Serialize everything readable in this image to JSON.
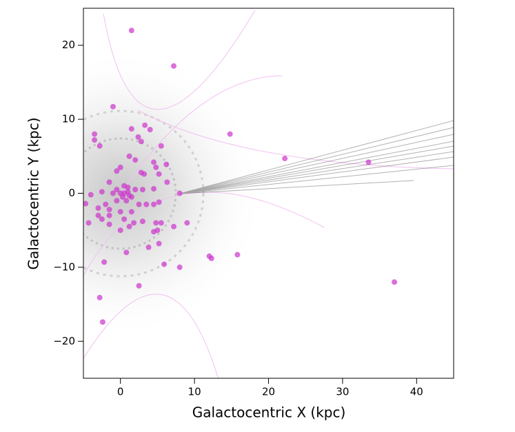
{
  "chart_data": {
    "type": "scatter",
    "x_label": "Galactocentric X (kpc)",
    "y_label": "Galactocentric Y (kpc)",
    "xlim": [
      -5,
      45
    ],
    "ylim": [
      -25,
      25
    ],
    "xticks": [
      0,
      10,
      20,
      30,
      40
    ],
    "yticks": [
      {
        "value": -20,
        "label": "−20"
      },
      {
        "value": -10,
        "label": "−10"
      },
      0,
      10,
      20
    ],
    "color": "#cc33cc",
    "x": [
      1.5,
      7.2,
      -1,
      -3.5,
      -3.5,
      3.3,
      4,
      1.5,
      2.4,
      2.8,
      -2.8,
      5.5,
      14.8,
      22.2,
      33.5,
      37,
      8,
      1.2,
      2,
      4.5,
      4.8,
      6.2,
      0,
      -0.5,
      2.8,
      3.2,
      5.2,
      6.3,
      -1.5,
      0.5,
      1,
      2,
      3,
      4.5,
      -2.5,
      -4,
      -4.7,
      -1,
      0.3,
      1.5,
      -0.5,
      2.5,
      3.5,
      4.5,
      5.2,
      -2,
      -3,
      -1.5,
      0,
      1.5,
      -3,
      -2.5,
      -1.5,
      0.5,
      1.8,
      3,
      4.8,
      5.5,
      7.2,
      9,
      -4.3,
      -1.5,
      1.2,
      0,
      4.5,
      5,
      5.2,
      3.8,
      0.8,
      -2.2,
      5.9,
      8,
      12,
      12.3,
      15.8,
      2.5,
      -2.8,
      -2.4,
      0,
      0.5,
      1,
      -0.5,
      0.8,
      1.2
    ],
    "y": [
      22,
      17.2,
      11.7,
      8,
      7.2,
      9.2,
      8.6,
      8.7,
      7.6,
      7,
      6.4,
      6.4,
      8,
      4.7,
      4.2,
      -12,
      0,
      5,
      4.5,
      4.2,
      3.5,
      3.9,
      3.5,
      3,
      2.8,
      2.6,
      2.6,
      1.5,
      1.5,
      1,
      0.8,
      0.5,
      0.5,
      0.6,
      0.2,
      -0.2,
      -1.4,
      0,
      -0.5,
      -0.5,
      -1,
      -1.5,
      -1.5,
      -1.5,
      -1.2,
      -1.5,
      -2,
      -2.2,
      -2.5,
      -2.5,
      -3,
      -3.5,
      -3,
      -3.5,
      -4,
      -3.8,
      -4,
      -4,
      -4.5,
      -4,
      -4,
      -4.2,
      -4.5,
      -5,
      -5.2,
      -5,
      -6.8,
      -7.3,
      -8,
      -9.3,
      -9.6,
      -10,
      -8.5,
      -8.8,
      -8.3,
      -12.5,
      -14.1,
      -17.4,
      0,
      0,
      0.2,
      0.5,
      -1,
      -0.3
    ]
  }
}
